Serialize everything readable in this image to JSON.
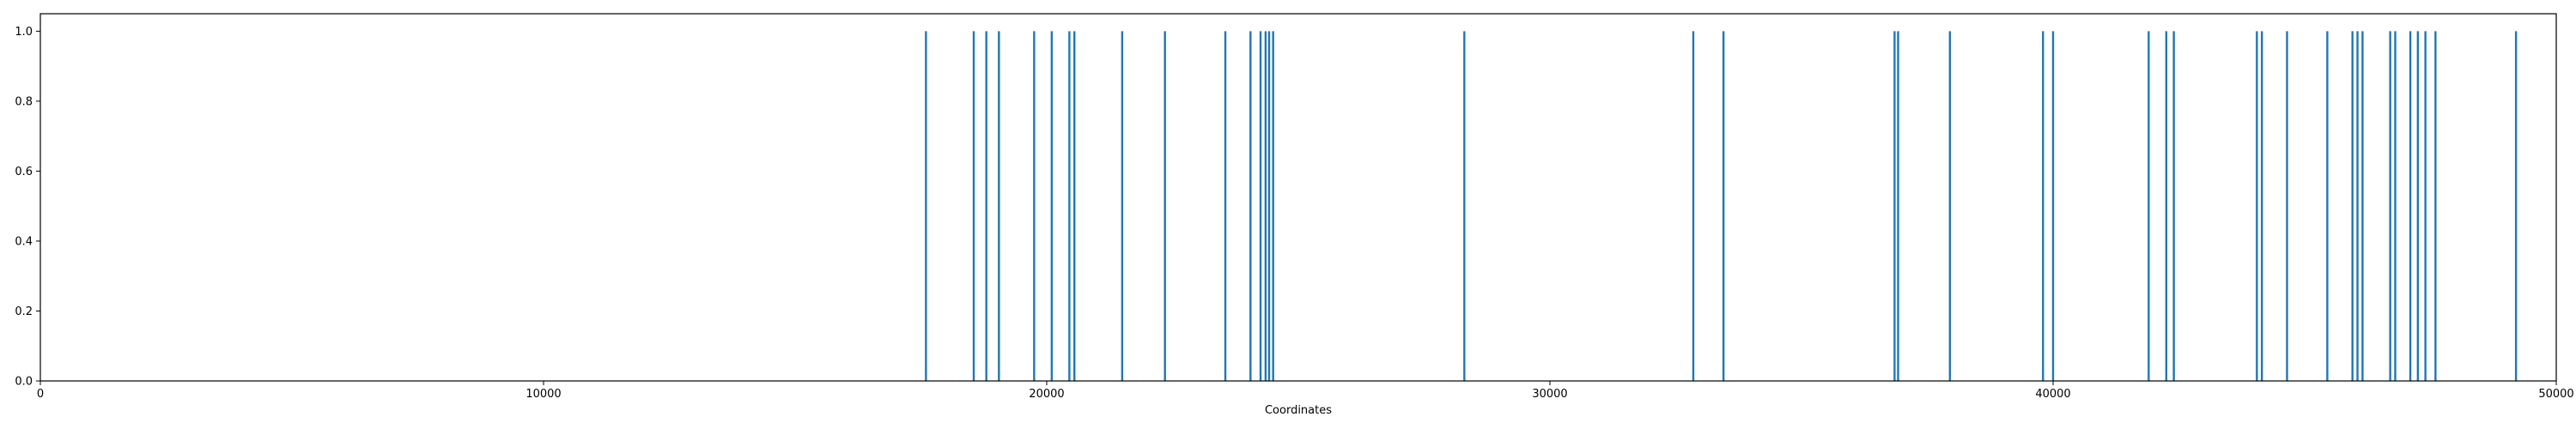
{
  "chart_data": {
    "type": "bar",
    "title": "",
    "xlabel": "Coordinates",
    "ylabel": "",
    "xlim": [
      0,
      50000
    ],
    "ylim": [
      0,
      1.05
    ],
    "grid": false,
    "bar_color": "#1f77b4",
    "x_ticks": [
      {
        "value": 0,
        "label": "0"
      },
      {
        "value": 10000,
        "label": "10000"
      },
      {
        "value": 20000,
        "label": "20000"
      },
      {
        "value": 30000,
        "label": "30000"
      },
      {
        "value": 40000,
        "label": "40000"
      },
      {
        "value": 50000,
        "label": "50000"
      }
    ],
    "y_ticks": [
      {
        "value": 0.0,
        "label": "0.0"
      },
      {
        "value": 0.2,
        "label": "0.2"
      },
      {
        "value": 0.4,
        "label": "0.4"
      },
      {
        "value": 0.6,
        "label": "0.6"
      },
      {
        "value": 0.8,
        "label": "0.8"
      },
      {
        "value": 1.0,
        "label": "1.0"
      }
    ],
    "series": [
      {
        "x": [
          17600,
          18550,
          18800,
          19050,
          19750,
          20100,
          20450,
          20550,
          21500,
          22350,
          23550,
          24050,
          24250,
          24350,
          24420,
          24500,
          28300,
          32850,
          33450,
          36850,
          36920,
          37950,
          39800,
          40000,
          41900,
          42250,
          42400,
          44050,
          44150,
          44650,
          45450,
          45950,
          46050,
          46150,
          46700,
          46800,
          47100,
          47250,
          47400,
          47600,
          49200
        ],
        "values": [
          1,
          1,
          1,
          1,
          1,
          1,
          1,
          1,
          1,
          1,
          1,
          1,
          1,
          1,
          1,
          1,
          1,
          1,
          1,
          1,
          1,
          1,
          1,
          1,
          1,
          1,
          1,
          1,
          1,
          1,
          1,
          1,
          1,
          1,
          1,
          1,
          1,
          1,
          1,
          1,
          1
        ]
      }
    ]
  }
}
